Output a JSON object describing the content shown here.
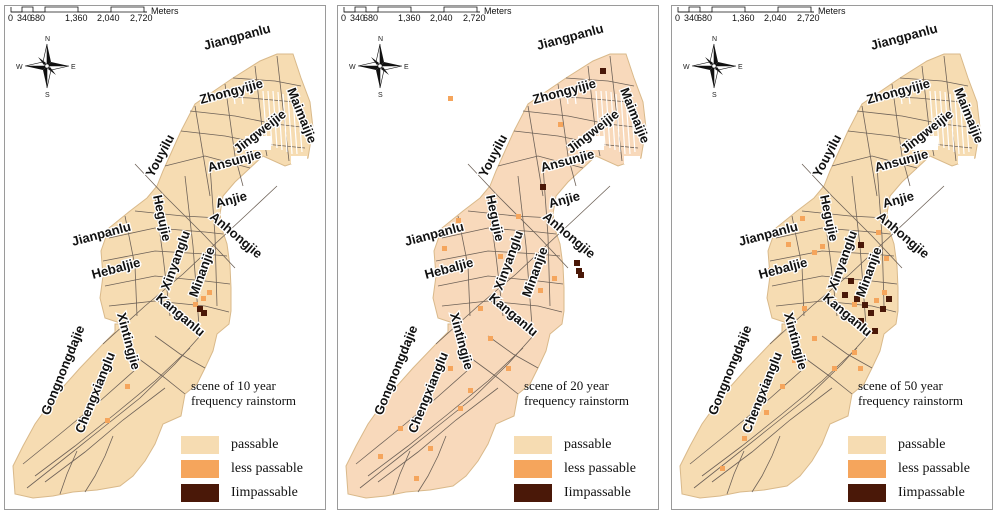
{
  "legend": {
    "passable": "passable",
    "less_passable": "less passable",
    "impassable": "Iimpassable"
  },
  "colors": {
    "passable_fill": "#f6dcb2",
    "passable_fill_alt": "#f8d9bb",
    "less_passable": "#f5a55c",
    "impassable": "#4a1808",
    "road": "#6e6258"
  },
  "compass": {
    "n": "N",
    "s": "S",
    "e": "E",
    "w": "W"
  },
  "scale": {
    "unit": "Meters",
    "ticks": [
      "0",
      "340",
      "680",
      "1,360",
      "2,040",
      "2,720"
    ]
  },
  "streets": {
    "jiangpanlu": "Jiangpanlu",
    "zhongyijie": "Zhongyijie",
    "maimaijie": "Maimaijie",
    "youyilu": "Youyilu",
    "jingweijie": "Jingweijie",
    "ansunjie": "Ansunjie",
    "anjie": "Anjie",
    "anhongjie": "Anhongjie",
    "jianpanlu": "Jianpanlu",
    "hegujie": "Hegujie",
    "hebaljie": "Hebaljie",
    "xinyanglu": "Xinyanglu",
    "minanjie": "Minanjie",
    "kanganlu": "Kanganlu",
    "xintingjie": "Xintingjie",
    "gongnongdajie": "Gongnongdajie",
    "chengxianglu": "Chengxianglu"
  },
  "panels": [
    {
      "scene_line1": "scene of 10 year",
      "scene_line2": "frequency rainstorm",
      "fill_key": "passable_fill"
    },
    {
      "scene_line1": "scene of 20 year",
      "scene_line2": "frequency rainstorm",
      "fill_key": "passable_fill_alt"
    },
    {
      "scene_line1": "scene of 50 year",
      "scene_line2": "frequency rainstorm",
      "fill_key": "passable_fill"
    }
  ]
}
